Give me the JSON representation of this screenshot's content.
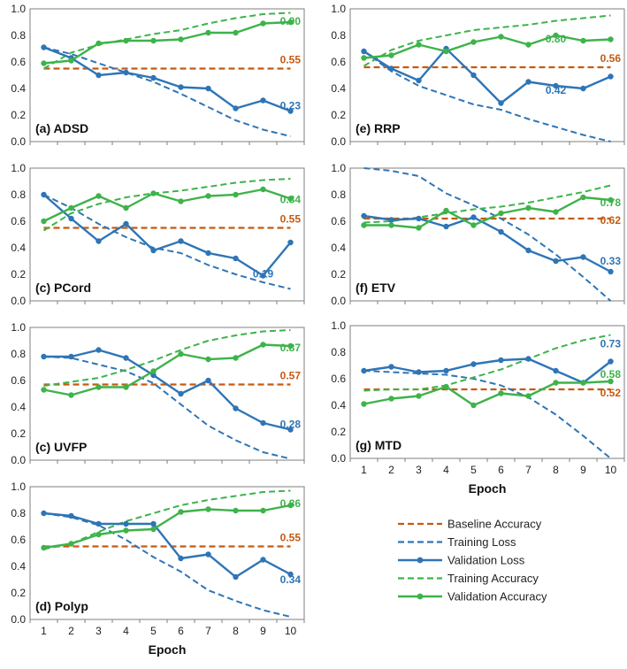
{
  "colors": {
    "baseline": "#C55A11",
    "training_loss": "#2E75B6",
    "validation_loss": "#2E75B6",
    "training_accuracy": "#3DB34A",
    "validation_accuracy": "#3DB34A",
    "frame": "#7F7F7F"
  },
  "chart_data": [
    {
      "type": "line",
      "id": "adsd",
      "panel_label": "(a) ADSD",
      "x": [
        1,
        2,
        3,
        4,
        5,
        6,
        7,
        8,
        9,
        10
      ],
      "ylim": [
        0,
        1.0
      ],
      "yticks": [
        "0.0",
        "0.2",
        "0.4",
        "0.6",
        "0.8",
        "1.0"
      ],
      "show_xticks": false,
      "xlabel": "",
      "series": [
        {
          "name": "Baseline Accuracy",
          "key": "baseline",
          "values": [
            0.55,
            0.55,
            0.55,
            0.55,
            0.55,
            0.55,
            0.55,
            0.55,
            0.55,
            0.55
          ]
        },
        {
          "name": "Training Loss",
          "key": "training_loss",
          "values": [
            0.71,
            0.66,
            0.59,
            0.52,
            0.45,
            0.36,
            0.26,
            0.16,
            0.09,
            0.04
          ]
        },
        {
          "name": "Validation Loss",
          "key": "validation_loss",
          "values": [
            0.71,
            0.63,
            0.5,
            0.52,
            0.48,
            0.41,
            0.4,
            0.25,
            0.31,
            0.23
          ]
        },
        {
          "name": "Training Accuracy",
          "key": "training_accuracy",
          "values": [
            0.55,
            0.67,
            0.73,
            0.77,
            0.81,
            0.84,
            0.89,
            0.93,
            0.96,
            0.97
          ]
        },
        {
          "name": "Validation Accuracy",
          "key": "validation_accuracy",
          "values": [
            0.59,
            0.61,
            0.74,
            0.76,
            0.76,
            0.77,
            0.82,
            0.82,
            0.89,
            0.9
          ]
        }
      ],
      "annotations": [
        {
          "text": "0.55",
          "series": "baseline"
        },
        {
          "text": "0.90",
          "series": "validation_accuracy"
        },
        {
          "text": "0.23",
          "series": "validation_loss"
        }
      ]
    },
    {
      "type": "line",
      "id": "pcord",
      "panel_label": "(c) PCord",
      "x": [
        1,
        2,
        3,
        4,
        5,
        6,
        7,
        8,
        9,
        10
      ],
      "ylim": [
        0,
        1.0
      ],
      "yticks": [
        "0.0",
        "0.2",
        "0.4",
        "0.6",
        "0.8",
        "1.0"
      ],
      "show_xticks": false,
      "xlabel": "",
      "series": [
        {
          "name": "Baseline Accuracy",
          "key": "baseline",
          "values": [
            0.55,
            0.55,
            0.55,
            0.55,
            0.55,
            0.55,
            0.55,
            0.55,
            0.55,
            0.55
          ]
        },
        {
          "name": "Training Loss",
          "key": "training_loss",
          "values": [
            0.8,
            0.7,
            0.58,
            0.48,
            0.4,
            0.36,
            0.27,
            0.2,
            0.14,
            0.09
          ]
        },
        {
          "name": "Validation Loss",
          "key": "validation_loss",
          "values": [
            0.8,
            0.62,
            0.45,
            0.58,
            0.38,
            0.45,
            0.36,
            0.32,
            0.19,
            0.44
          ]
        },
        {
          "name": "Training Accuracy",
          "key": "training_accuracy",
          "values": [
            0.53,
            0.66,
            0.73,
            0.78,
            0.81,
            0.83,
            0.86,
            0.89,
            0.91,
            0.92
          ]
        },
        {
          "name": "Validation Accuracy",
          "key": "validation_accuracy",
          "values": [
            0.6,
            0.7,
            0.79,
            0.7,
            0.81,
            0.75,
            0.79,
            0.8,
            0.84,
            0.77
          ]
        }
      ],
      "annotations": [
        {
          "text": "0.55",
          "series": "baseline"
        },
        {
          "text": "0.84",
          "series": "validation_accuracy"
        },
        {
          "text": "0.19",
          "series": "validation_loss"
        }
      ]
    },
    {
      "type": "line",
      "id": "uvfp",
      "panel_label": "(c) UVFP",
      "x": [
        1,
        2,
        3,
        4,
        5,
        6,
        7,
        8,
        9,
        10
      ],
      "ylim": [
        0,
        1.0
      ],
      "yticks": [
        "0.0",
        "0.2",
        "0.4",
        "0.6",
        "0.8",
        "1.0"
      ],
      "show_xticks": false,
      "xlabel": "",
      "series": [
        {
          "name": "Baseline Accuracy",
          "key": "baseline",
          "values": [
            0.57,
            0.57,
            0.57,
            0.57,
            0.57,
            0.57,
            0.57,
            0.57,
            0.57,
            0.57
          ]
        },
        {
          "name": "Training Loss",
          "key": "training_loss",
          "values": [
            0.78,
            0.77,
            0.72,
            0.67,
            0.58,
            0.42,
            0.26,
            0.15,
            0.06,
            0.01
          ]
        },
        {
          "name": "Validation Loss",
          "key": "validation_loss",
          "values": [
            0.78,
            0.78,
            0.83,
            0.77,
            0.64,
            0.5,
            0.6,
            0.39,
            0.28,
            0.23
          ]
        },
        {
          "name": "Training Accuracy",
          "key": "training_accuracy",
          "values": [
            0.56,
            0.59,
            0.62,
            0.68,
            0.75,
            0.83,
            0.9,
            0.94,
            0.97,
            0.98
          ]
        },
        {
          "name": "Validation Accuracy",
          "key": "validation_accuracy",
          "values": [
            0.53,
            0.49,
            0.55,
            0.55,
            0.67,
            0.8,
            0.76,
            0.77,
            0.87,
            0.86
          ]
        }
      ],
      "annotations": [
        {
          "text": "0.57",
          "series": "baseline"
        },
        {
          "text": "0.87",
          "series": "validation_accuracy"
        },
        {
          "text": "0.28",
          "series": "validation_loss"
        }
      ]
    },
    {
      "type": "line",
      "id": "polyp",
      "panel_label": "(d) Polyp",
      "x": [
        1,
        2,
        3,
        4,
        5,
        6,
        7,
        8,
        9,
        10
      ],
      "ylim": [
        0,
        1.0
      ],
      "yticks": [
        "0.0",
        "0.2",
        "0.4",
        "0.6",
        "0.8",
        "1.0"
      ],
      "show_xticks": true,
      "xlabel": "Epoch",
      "series": [
        {
          "name": "Baseline Accuracy",
          "key": "baseline",
          "values": [
            0.55,
            0.55,
            0.55,
            0.55,
            0.55,
            0.55,
            0.55,
            0.55,
            0.55,
            0.55
          ]
        },
        {
          "name": "Training Loss",
          "key": "training_loss",
          "values": [
            0.8,
            0.77,
            0.71,
            0.6,
            0.47,
            0.36,
            0.22,
            0.14,
            0.07,
            0.02
          ]
        },
        {
          "name": "Validation Loss",
          "key": "validation_loss",
          "values": [
            0.8,
            0.78,
            0.72,
            0.72,
            0.72,
            0.46,
            0.49,
            0.32,
            0.45,
            0.34
          ]
        },
        {
          "name": "Training Accuracy",
          "key": "training_accuracy",
          "values": [
            0.53,
            0.57,
            0.66,
            0.74,
            0.8,
            0.86,
            0.9,
            0.93,
            0.96,
            0.97
          ]
        },
        {
          "name": "Validation Accuracy",
          "key": "validation_accuracy",
          "values": [
            0.54,
            0.57,
            0.64,
            0.67,
            0.68,
            0.81,
            0.83,
            0.82,
            0.82,
            0.86
          ]
        }
      ],
      "annotations": [
        {
          "text": "0.55",
          "series": "baseline"
        },
        {
          "text": "0.86",
          "series": "validation_accuracy"
        },
        {
          "text": "0.34",
          "series": "validation_loss"
        }
      ]
    },
    {
      "type": "line",
      "id": "rrp",
      "panel_label": "(e) RRP",
      "x": [
        1,
        2,
        3,
        4,
        5,
        6,
        7,
        8,
        9,
        10
      ],
      "ylim": [
        0,
        1.0
      ],
      "yticks": [
        "0.0",
        "0.2",
        "0.4",
        "0.6",
        "0.8",
        "1.0"
      ],
      "show_xticks": false,
      "xlabel": "",
      "series": [
        {
          "name": "Baseline Accuracy",
          "key": "baseline",
          "values": [
            0.56,
            0.56,
            0.56,
            0.56,
            0.56,
            0.56,
            0.56,
            0.56,
            0.56,
            0.56
          ]
        },
        {
          "name": "Training Loss",
          "key": "training_loss",
          "values": [
            0.68,
            0.53,
            0.42,
            0.35,
            0.28,
            0.24,
            0.17,
            0.11,
            0.05,
            0.0
          ]
        },
        {
          "name": "Validation Loss",
          "key": "validation_loss",
          "values": [
            0.68,
            0.55,
            0.46,
            0.7,
            0.5,
            0.29,
            0.45,
            0.42,
            0.4,
            0.49
          ]
        },
        {
          "name": "Training Accuracy",
          "key": "training_accuracy",
          "values": [
            0.57,
            0.69,
            0.76,
            0.8,
            0.84,
            0.86,
            0.88,
            0.91,
            0.93,
            0.95
          ]
        },
        {
          "name": "Validation Accuracy",
          "key": "validation_accuracy",
          "values": [
            0.63,
            0.65,
            0.73,
            0.68,
            0.75,
            0.79,
            0.73,
            0.8,
            0.76,
            0.77
          ]
        }
      ],
      "annotations": [
        {
          "text": "0.56",
          "series": "baseline"
        },
        {
          "text": "0.80",
          "series": "validation_accuracy"
        },
        {
          "text": "0.42",
          "series": "validation_loss"
        }
      ]
    },
    {
      "type": "line",
      "id": "etv",
      "panel_label": "(f) ETV",
      "x": [
        1,
        2,
        3,
        4,
        5,
        6,
        7,
        8,
        9,
        10
      ],
      "ylim": [
        0,
        1.0
      ],
      "yticks": [
        "0.0",
        "0.2",
        "0.4",
        "0.6",
        "0.8",
        "1.0"
      ],
      "show_xticks": false,
      "xlabel": "",
      "series": [
        {
          "name": "Baseline Accuracy",
          "key": "baseline",
          "values": [
            0.62,
            0.62,
            0.62,
            0.62,
            0.62,
            0.62,
            0.62,
            0.62,
            0.62,
            0.62
          ]
        },
        {
          "name": "Training Loss",
          "key": "training_loss",
          "values": [
            1.0,
            0.98,
            0.94,
            0.81,
            0.72,
            0.62,
            0.5,
            0.35,
            0.18,
            0.0
          ]
        },
        {
          "name": "Validation Loss",
          "key": "validation_loss",
          "values": [
            0.64,
            0.61,
            0.62,
            0.56,
            0.63,
            0.52,
            0.38,
            0.3,
            0.33,
            0.22
          ]
        },
        {
          "name": "Training Accuracy",
          "key": "training_accuracy",
          "values": [
            0.59,
            0.6,
            0.63,
            0.66,
            0.69,
            0.71,
            0.74,
            0.78,
            0.82,
            0.87
          ]
        },
        {
          "name": "Validation Accuracy",
          "key": "validation_accuracy",
          "values": [
            0.57,
            0.57,
            0.55,
            0.68,
            0.57,
            0.66,
            0.7,
            0.67,
            0.78,
            0.76
          ]
        }
      ],
      "annotations": [
        {
          "text": "0.62",
          "series": "baseline"
        },
        {
          "text": "0.78",
          "series": "validation_accuracy"
        },
        {
          "text": "0.33",
          "series": "validation_loss"
        }
      ]
    },
    {
      "type": "line",
      "id": "mtd",
      "panel_label": "(g) MTD",
      "x": [
        1,
        2,
        3,
        4,
        5,
        6,
        7,
        8,
        9,
        10
      ],
      "ylim": [
        0,
        1.0
      ],
      "yticks": [
        "0.0",
        "0.2",
        "0.4",
        "0.6",
        "0.8",
        "1.0"
      ],
      "show_xticks": true,
      "xlabel": "Epoch",
      "series": [
        {
          "name": "Baseline Accuracy",
          "key": "baseline",
          "values": [
            0.52,
            0.52,
            0.52,
            0.52,
            0.52,
            0.52,
            0.52,
            0.52,
            0.52,
            0.52
          ]
        },
        {
          "name": "Training Loss",
          "key": "training_loss",
          "values": [
            0.66,
            0.65,
            0.64,
            0.63,
            0.6,
            0.55,
            0.46,
            0.33,
            0.17,
            0.0
          ]
        },
        {
          "name": "Validation Loss",
          "key": "validation_loss",
          "values": [
            0.66,
            0.69,
            0.65,
            0.66,
            0.71,
            0.74,
            0.75,
            0.66,
            0.57,
            0.73
          ]
        },
        {
          "name": "Training Accuracy",
          "key": "training_accuracy",
          "values": [
            0.51,
            0.52,
            0.52,
            0.55,
            0.61,
            0.67,
            0.75,
            0.83,
            0.89,
            0.93
          ]
        },
        {
          "name": "Validation Accuracy",
          "key": "validation_accuracy",
          "values": [
            0.41,
            0.45,
            0.47,
            0.54,
            0.4,
            0.49,
            0.47,
            0.57,
            0.57,
            0.58
          ]
        }
      ],
      "annotations": [
        {
          "text": "0.73",
          "series": "validation_loss"
        },
        {
          "text": "0.58",
          "series": "validation_accuracy"
        },
        {
          "text": "0.52",
          "series": "baseline"
        }
      ]
    }
  ],
  "legend": {
    "items": [
      {
        "label": "Baseline Accuracy",
        "key": "baseline",
        "style": "dashed"
      },
      {
        "label": "Training Loss",
        "key": "training_loss",
        "style": "dashed"
      },
      {
        "label": "Validation Loss",
        "key": "validation_loss",
        "style": "solid-marker"
      },
      {
        "label": "Training Accuracy",
        "key": "training_accuracy",
        "style": "dashed"
      },
      {
        "label": "Validation Accuracy",
        "key": "validation_accuracy",
        "style": "solid-marker"
      }
    ]
  }
}
